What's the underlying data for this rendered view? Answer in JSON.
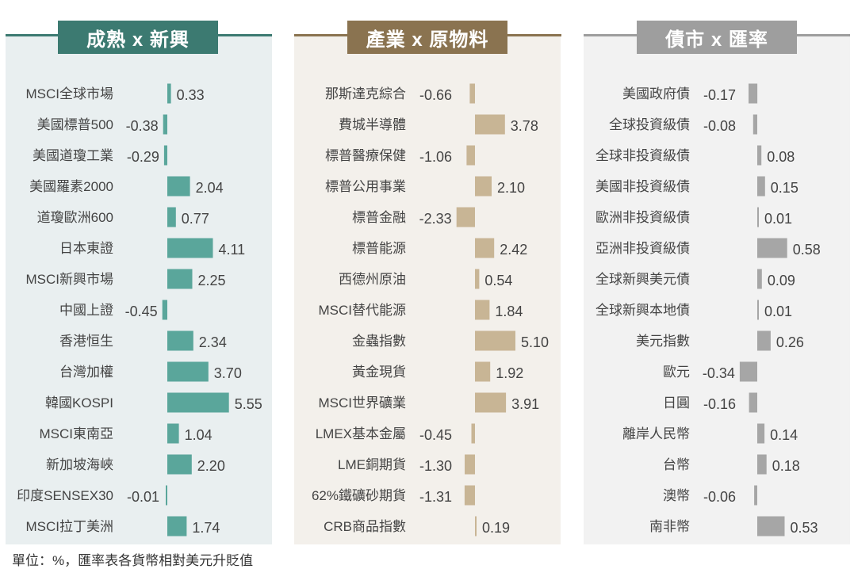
{
  "colors": {
    "background": "#ffffff",
    "text": "#333333",
    "ink": "#444444"
  },
  "footnote": "單位：%，匯率表各貨幣相對美元升貶值",
  "chart_data": [
    {
      "type": "bar",
      "orientation": "horizontal",
      "title": "成熟 x 新興",
      "color": "#5aa69b",
      "title_color": "#3c7a71",
      "panel_bg": "#e9eff0",
      "unit": "%",
      "categories": [
        "MSCI全球市場",
        "美國標普500",
        "美國道瓊工業",
        "美國羅素2000",
        "道瓊歐洲600",
        "日本東證",
        "MSCI新興市場",
        "中國上證",
        "香港恒生",
        "台灣加權",
        "韓國KOSPI",
        "MSCI東南亞",
        "新加坡海峽",
        "印度SENSEX30",
        "MSCI拉丁美洲"
      ],
      "values": [
        0.33,
        -0.38,
        -0.29,
        2.04,
        0.77,
        4.11,
        2.25,
        -0.45,
        2.34,
        3.7,
        5.55,
        1.04,
        2.2,
        -0.01,
        1.74
      ],
      "labels": [
        "0.33",
        "-0.38",
        "-0.29",
        "2.04",
        "0.77",
        "4.11",
        "2.25",
        "-0.45",
        "2.34",
        "3.70",
        "5.55",
        "1.04",
        "2.20",
        "-0.01",
        "1.74"
      ]
    },
    {
      "type": "bar",
      "orientation": "horizontal",
      "title": "產業 x 原物料",
      "color": "#c8b595",
      "title_color": "#8a7350",
      "panel_bg": "#f3f0eb",
      "unit": "%",
      "categories": [
        "那斯達克綜合",
        "費城半導體",
        "標普醫療保健",
        "標普公用事業",
        "標普金融",
        "標普能源",
        "西德州原油",
        "MSCI替代能源",
        "金蟲指數",
        "黃金現貨",
        "MSCI世界礦業",
        "LMEX基本金屬",
        "LME銅期貨",
        "62%鐵礦砂期貨",
        "CRB商品指數"
      ],
      "values": [
        -0.66,
        3.78,
        -1.06,
        2.1,
        -2.33,
        2.42,
        0.54,
        1.84,
        5.1,
        1.92,
        3.91,
        -0.45,
        -1.3,
        -1.31,
        0.19
      ],
      "labels": [
        "-0.66",
        "3.78",
        "-1.06",
        "2.10",
        "-2.33",
        "2.42",
        "0.54",
        "1.84",
        "5.10",
        "1.92",
        "3.91",
        "-0.45",
        "-1.30",
        "-1.31",
        "0.19"
      ]
    },
    {
      "type": "bar",
      "orientation": "horizontal",
      "title": "債市 x 匯率",
      "color": "#a6a6a6",
      "title_color": "#9e9e9e",
      "panel_bg": "#f2f2f2",
      "unit": "%",
      "categories": [
        "美國政府債",
        "全球投資級債",
        "全球非投資級債",
        "美國非投資級債",
        "歐洲非投資級債",
        "亞洲非投資級債",
        "全球新興美元債",
        "全球新興本地債",
        "美元指數",
        "歐元",
        "日圓",
        "離岸人民幣",
        "台幣",
        "澳幣",
        "南非幣"
      ],
      "values": [
        -0.17,
        -0.08,
        0.08,
        0.15,
        0.01,
        0.58,
        0.09,
        0.01,
        0.26,
        -0.34,
        -0.16,
        0.14,
        0.18,
        -0.06,
        0.53
      ],
      "labels": [
        "-0.17",
        "-0.08",
        "0.08",
        "0.15",
        "0.01",
        "0.58",
        "0.09",
        "0.01",
        "0.26",
        "-0.34",
        "-0.16",
        "0.14",
        "0.18",
        "-0.06",
        "0.53"
      ]
    }
  ]
}
